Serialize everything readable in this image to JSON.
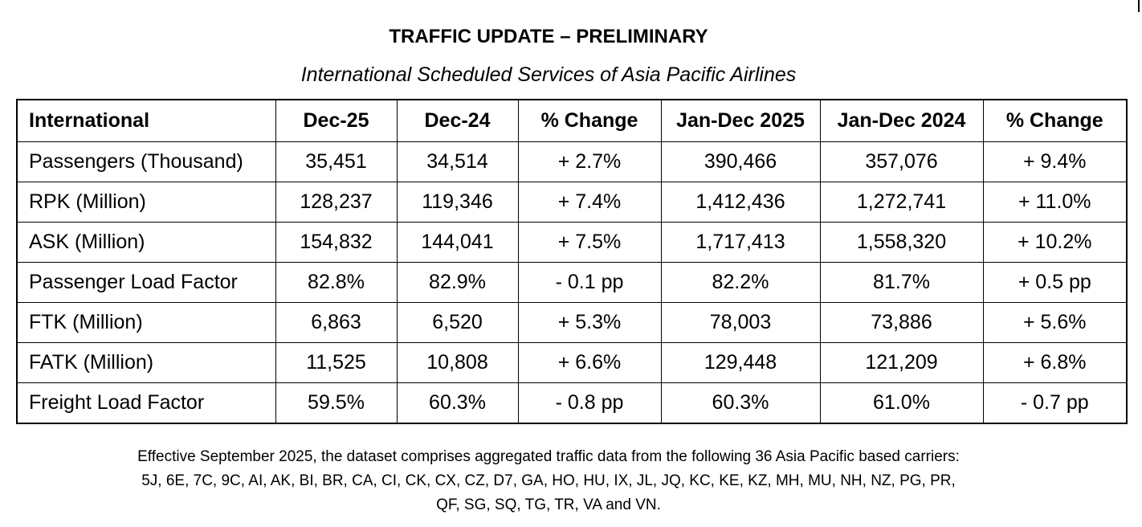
{
  "title": "TRAFFIC UPDATE – PRELIMINARY",
  "subtitle": "International Scheduled Services of Asia Pacific Airlines",
  "table": {
    "headers": [
      "International",
      "Dec-25",
      "Dec-24",
      "% Change",
      "Jan-Dec 2025",
      "Jan-Dec 2024",
      "% Change"
    ],
    "rows": [
      [
        "Passengers (Thousand)",
        "35,451",
        "34,514",
        "+ 2.7%",
        "390,466",
        "357,076",
        "+ 9.4%"
      ],
      [
        "RPK (Million)",
        "128,237",
        "119,346",
        "+ 7.4%",
        "1,412,436",
        "1,272,741",
        "+ 11.0%"
      ],
      [
        "ASK (Million)",
        "154,832",
        "144,041",
        "+ 7.5%",
        "1,717,413",
        "1,558,320",
        "+ 10.2%"
      ],
      [
        "Passenger Load Factor",
        "82.8%",
        "82.9%",
        "- 0.1 pp",
        "82.2%",
        "81.7%",
        "+ 0.5 pp"
      ],
      [
        "FTK (Million)",
        "6,863",
        "6,520",
        "+ 5.3%",
        "78,003",
        "73,886",
        "+ 5.6%"
      ],
      [
        "FATK (Million)",
        "11,525",
        "10,808",
        "+ 6.6%",
        "129,448",
        "121,209",
        "+ 6.8%"
      ],
      [
        "Freight Load Factor",
        "59.5%",
        "60.3%",
        "- 0.8 pp",
        "60.3%",
        "61.0%",
        "- 0.7 pp"
      ]
    ]
  },
  "footnote": {
    "line1": "Effective September 2025, the dataset comprises aggregated traffic data from the following 36 Asia Pacific based carriers:",
    "line2": "5J, 6E, 7C, 9C, AI, AK, BI, BR, CA, CI, CK, CX, CZ, D7, GA, HO, HU, IX, JL, JQ, KC, KE, KZ, MH, MU, NH, NZ, PG, PR,",
    "line3": "QF, SG, SQ, TG, TR, VA and VN."
  }
}
